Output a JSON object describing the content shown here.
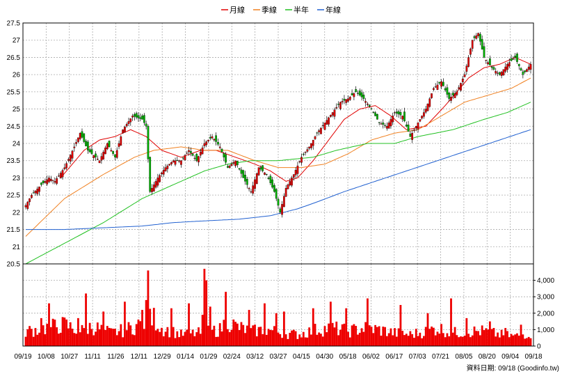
{
  "chart_data": {
    "type": "candlestick",
    "title": "",
    "grid": true,
    "legend_position": "top-center",
    "legend": [
      {
        "key": "ma20",
        "name": "月線",
        "color": "#e00000"
      },
      {
        "key": "ma60",
        "name": "季線",
        "color": "#f08020"
      },
      {
        "key": "ma120",
        "name": "半年",
        "color": "#20c020"
      },
      {
        "key": "ma240",
        "name": "年線",
        "color": "#2060d0"
      }
    ],
    "colors": {
      "up": "#e00000",
      "down": "#00b000",
      "volume": "#ee0000",
      "grid": "#999999"
    },
    "price_axis": {
      "min": 20.5,
      "max": 27.5,
      "ticks": [
        "20.5",
        "21",
        "21.5",
        "22",
        "22.5",
        "23",
        "23.5",
        "24",
        "24.5",
        "25",
        "25.5",
        "26",
        "26.5",
        "27",
        "27.5"
      ]
    },
    "volume_axis": {
      "min": 0,
      "max": 5000,
      "ticks": [
        "0",
        "1,000",
        "2,000",
        "3,000",
        "4,000"
      ]
    },
    "x_ticks": [
      "09/19",
      "10/08",
      "10/27",
      "11/11",
      "11/26",
      "12/11",
      "12/29",
      "01/14",
      "01/29",
      "02/24",
      "03/12",
      "03/27",
      "04/15",
      "04/30",
      "05/18",
      "06/02",
      "06/17",
      "07/03",
      "07/21",
      "08/05",
      "08/20",
      "09/04",
      "09/18"
    ],
    "price_keypoints": [
      [
        0,
        22.2
      ],
      [
        3,
        22.5
      ],
      [
        8,
        22.8
      ],
      [
        12,
        23.0
      ],
      [
        15,
        22.9
      ],
      [
        20,
        23.3
      ],
      [
        25,
        23.9
      ],
      [
        28,
        24.3
      ],
      [
        32,
        23.8
      ],
      [
        38,
        23.5
      ],
      [
        42,
        24.0
      ],
      [
        46,
        23.6
      ],
      [
        50,
        24.4
      ],
      [
        55,
        24.8
      ],
      [
        60,
        24.7
      ],
      [
        62,
        24.5
      ],
      [
        64,
        22.6
      ],
      [
        68,
        23.0
      ],
      [
        72,
        23.3
      ],
      [
        76,
        23.5
      ],
      [
        80,
        23.5
      ],
      [
        84,
        23.8
      ],
      [
        88,
        23.5
      ],
      [
        92,
        24.0
      ],
      [
        96,
        24.2
      ],
      [
        100,
        23.9
      ],
      [
        104,
        23.3
      ],
      [
        108,
        23.5
      ],
      [
        112,
        23.0
      ],
      [
        116,
        22.6
      ],
      [
        120,
        23.3
      ],
      [
        124,
        23.1
      ],
      [
        128,
        22.6
      ],
      [
        131,
        22.0
      ],
      [
        134,
        22.7
      ],
      [
        138,
        23.1
      ],
      [
        142,
        23.6
      ],
      [
        146,
        23.9
      ],
      [
        150,
        24.3
      ],
      [
        154,
        24.6
      ],
      [
        158,
        24.9
      ],
      [
        162,
        25.2
      ],
      [
        166,
        25.3
      ],
      [
        170,
        25.5
      ],
      [
        174,
        25.3
      ],
      [
        178,
        25.0
      ],
      [
        182,
        24.6
      ],
      [
        186,
        24.5
      ],
      [
        190,
        24.9
      ],
      [
        194,
        24.8
      ],
      [
        198,
        24.2
      ],
      [
        202,
        24.6
      ],
      [
        206,
        25.0
      ],
      [
        210,
        25.6
      ],
      [
        214,
        25.8
      ],
      [
        218,
        25.3
      ],
      [
        222,
        25.5
      ],
      [
        226,
        26.0
      ],
      [
        230,
        27.0
      ],
      [
        233,
        27.2
      ],
      [
        236,
        26.5
      ],
      [
        240,
        26.2
      ],
      [
        244,
        26.0
      ],
      [
        248,
        26.3
      ],
      [
        252,
        26.5
      ],
      [
        256,
        26.0
      ],
      [
        260,
        26.3
      ]
    ],
    "ma20_keypoints": [
      [
        18,
        23.0
      ],
      [
        30,
        23.8
      ],
      [
        38,
        24.1
      ],
      [
        46,
        24.2
      ],
      [
        54,
        24.4
      ],
      [
        62,
        24.2
      ],
      [
        70,
        23.8
      ],
      [
        80,
        23.6
      ],
      [
        90,
        23.8
      ],
      [
        98,
        23.8
      ],
      [
        108,
        23.6
      ],
      [
        118,
        23.4
      ],
      [
        126,
        23.2
      ],
      [
        134,
        22.9
      ],
      [
        140,
        23.0
      ],
      [
        148,
        23.5
      ],
      [
        156,
        24.1
      ],
      [
        164,
        24.7
      ],
      [
        172,
        25.0
      ],
      [
        180,
        25.1
      ],
      [
        188,
        24.8
      ],
      [
        196,
        24.4
      ],
      [
        206,
        24.5
      ],
      [
        216,
        25.1
      ],
      [
        228,
        25.9
      ],
      [
        236,
        26.2
      ],
      [
        244,
        26.3
      ],
      [
        252,
        26.5
      ],
      [
        260,
        26.3
      ]
    ],
    "ma60_keypoints": [
      [
        0,
        21.3
      ],
      [
        20,
        22.4
      ],
      [
        40,
        23.1
      ],
      [
        56,
        23.6
      ],
      [
        66,
        23.8
      ],
      [
        80,
        23.9
      ],
      [
        92,
        23.8
      ],
      [
        104,
        23.8
      ],
      [
        118,
        23.5
      ],
      [
        130,
        23.3
      ],
      [
        142,
        23.3
      ],
      [
        154,
        23.4
      ],
      [
        166,
        23.7
      ],
      [
        178,
        24.1
      ],
      [
        190,
        24.3
      ],
      [
        202,
        24.4
      ],
      [
        214,
        24.8
      ],
      [
        226,
        25.2
      ],
      [
        238,
        25.4
      ],
      [
        250,
        25.6
      ],
      [
        260,
        25.9
      ]
    ],
    "ma120_keypoints": [
      [
        0,
        20.5
      ],
      [
        20,
        21.1
      ],
      [
        40,
        21.7
      ],
      [
        60,
        22.4
      ],
      [
        76,
        22.8
      ],
      [
        92,
        23.2
      ],
      [
        104,
        23.4
      ],
      [
        116,
        23.5
      ],
      [
        130,
        23.5
      ],
      [
        148,
        23.6
      ],
      [
        160,
        23.8
      ],
      [
        176,
        24.0
      ],
      [
        190,
        24.0
      ],
      [
        202,
        24.2
      ],
      [
        220,
        24.4
      ],
      [
        236,
        24.7
      ],
      [
        248,
        24.9
      ],
      [
        260,
        25.2
      ]
    ],
    "ma240_keypoints": [
      [
        0,
        21.5
      ],
      [
        20,
        21.5
      ],
      [
        40,
        21.55
      ],
      [
        60,
        21.6
      ],
      [
        76,
        21.7
      ],
      [
        92,
        21.75
      ],
      [
        110,
        21.8
      ],
      [
        126,
        21.9
      ],
      [
        140,
        22.1
      ],
      [
        150,
        22.3
      ],
      [
        164,
        22.6
      ],
      [
        180,
        22.9
      ],
      [
        196,
        23.2
      ],
      [
        212,
        23.5
      ],
      [
        228,
        23.8
      ],
      [
        244,
        24.1
      ],
      [
        260,
        24.4
      ]
    ],
    "volume_keypoints": [
      [
        0,
        900
      ],
      [
        10,
        1100
      ],
      [
        20,
        1300
      ],
      [
        28,
        900
      ],
      [
        34,
        1200
      ],
      [
        44,
        800
      ],
      [
        52,
        1000
      ],
      [
        60,
        1400
      ],
      [
        66,
        1700
      ],
      [
        70,
        1100
      ],
      [
        80,
        700
      ],
      [
        90,
        800
      ],
      [
        100,
        1000
      ],
      [
        104,
        1600
      ],
      [
        108,
        1200
      ],
      [
        116,
        900
      ],
      [
        124,
        1000
      ],
      [
        132,
        800
      ],
      [
        140,
        700
      ],
      [
        150,
        1000
      ],
      [
        158,
        1100
      ],
      [
        166,
        900
      ],
      [
        174,
        1100
      ],
      [
        182,
        1000
      ],
      [
        190,
        800
      ],
      [
        198,
        700
      ],
      [
        206,
        900
      ],
      [
        212,
        1100
      ],
      [
        220,
        800
      ],
      [
        228,
        900
      ],
      [
        236,
        900
      ],
      [
        244,
        700
      ],
      [
        252,
        600
      ],
      [
        260,
        800
      ]
    ],
    "volume_spikes": [
      [
        8,
        1700
      ],
      [
        12,
        2600
      ],
      [
        27,
        1700
      ],
      [
        31,
        3200
      ],
      [
        40,
        2100
      ],
      [
        51,
        2700
      ],
      [
        60,
        2200
      ],
      [
        62,
        2800
      ],
      [
        63,
        4600
      ],
      [
        75,
        2300
      ],
      [
        84,
        2600
      ],
      [
        91,
        1900
      ],
      [
        92,
        4700
      ],
      [
        93,
        4000
      ],
      [
        95,
        2400
      ],
      [
        103,
        3300
      ],
      [
        115,
        2200
      ],
      [
        123,
        2600
      ],
      [
        129,
        2000
      ],
      [
        133,
        2100
      ],
      [
        148,
        2300
      ],
      [
        157,
        2700
      ],
      [
        165,
        2300
      ],
      [
        176,
        2900
      ],
      [
        193,
        2500
      ],
      [
        207,
        2000
      ],
      [
        219,
        2900
      ],
      [
        227,
        1700
      ],
      [
        239,
        1500
      ],
      [
        247,
        1100
      ],
      [
        255,
        1300
      ]
    ]
  },
  "source_label": "資料日期: 09/18  (Goodinfo.tw)"
}
